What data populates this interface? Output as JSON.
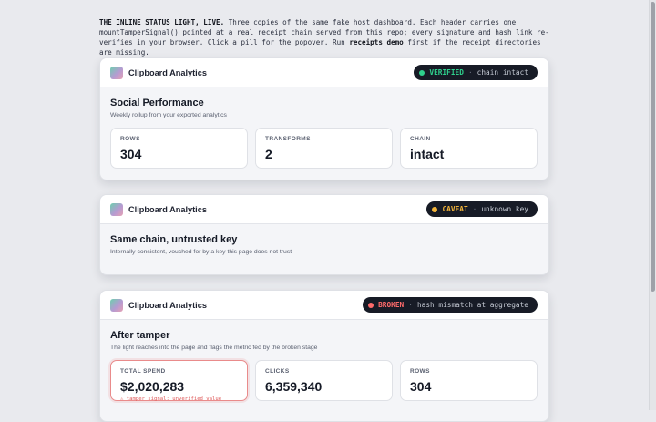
{
  "intro": {
    "heading": "THE INLINE STATUS LIGHT, LIVE.",
    "text_before": " Three copies of the same fake host dashboard. Each header carries one mountTamperSignal() pointed at a real receipt chain served from this repo; every signature and hash link re-verifies in your browser. Click a pill for the popover. Run ",
    "command": "receipts demo",
    "text_after": " first if the receipt directories are missing."
  },
  "colors": {
    "verified": "#2fd08d",
    "caveat": "#f3b43a",
    "broken": "#ff6b6b",
    "pill_bg": "#171b26"
  },
  "cards": [
    {
      "app_title": "Clipboard Analytics",
      "pill": {
        "status": "VERIFIED",
        "separator": "·",
        "detail": "chain intact",
        "color": "#2fd08d"
      },
      "title": "Social Performance",
      "subtitle": "Weekly rollup from your exported analytics",
      "tiles": [
        {
          "label": "ROWS",
          "value": "304"
        },
        {
          "label": "TRANSFORMS",
          "value": "2"
        },
        {
          "label": "CHAIN",
          "value": "intact"
        }
      ]
    },
    {
      "app_title": "Clipboard Analytics",
      "pill": {
        "status": "CAVEAT",
        "separator": "·",
        "detail": "unknown key",
        "color": "#f3b43a"
      },
      "title": "Same chain, untrusted key",
      "subtitle": "Internally consistent, vouched for by a key this page does not trust"
    },
    {
      "app_title": "Clipboard Analytics",
      "pill": {
        "status": "BROKEN",
        "separator": "·",
        "detail": "hash mismatch at aggregate",
        "color": "#ff6b6b"
      },
      "title": "After tamper",
      "subtitle": "The light reaches into the page and flags the metric fed by the broken stage",
      "tiles": [
        {
          "label": "TOTAL SPEND",
          "value": "$2,020,283",
          "warning": "⚠ tamper signal: unverified value"
        },
        {
          "label": "CLICKS",
          "value": "6,359,340"
        },
        {
          "label": "ROWS",
          "value": "304"
        }
      ]
    }
  ]
}
